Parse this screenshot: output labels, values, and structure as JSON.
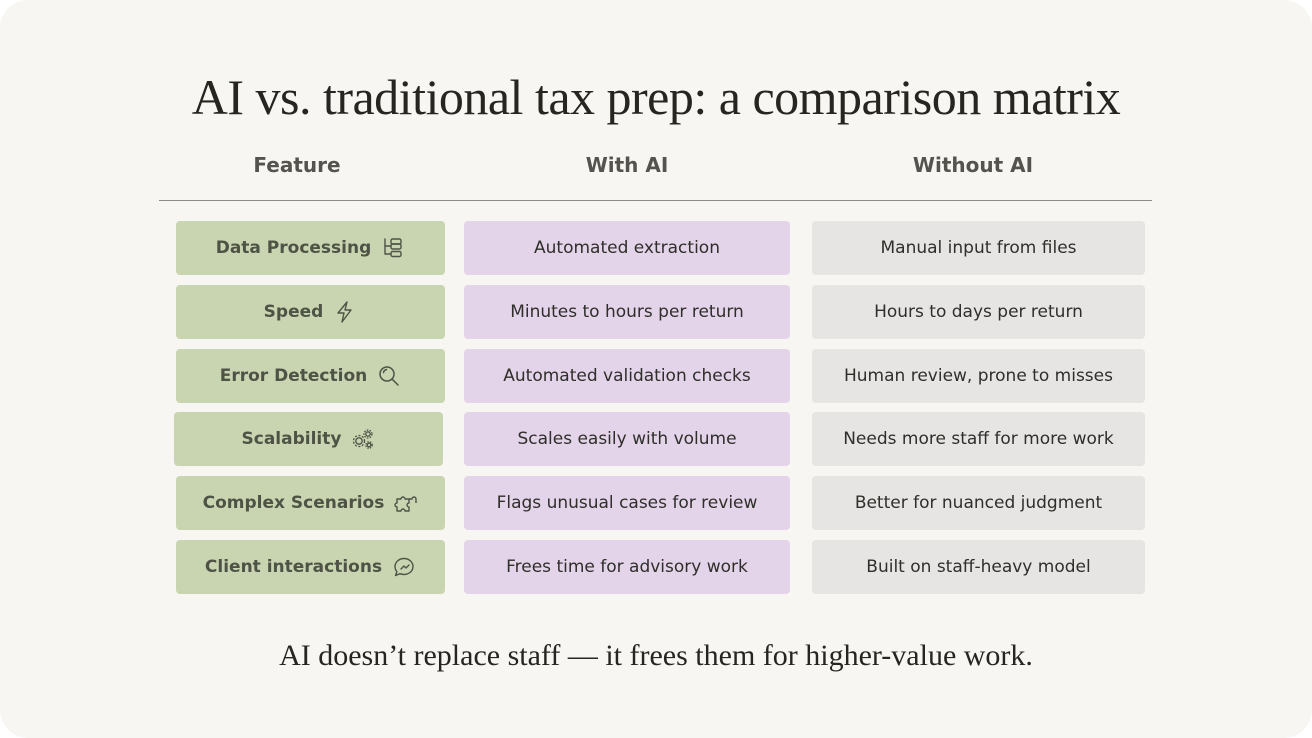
{
  "title": "AI vs. traditional tax prep: a comparison matrix",
  "columns": {
    "feature": "Feature",
    "with_ai": "With AI",
    "without_ai": "Without AI"
  },
  "rows": [
    {
      "feature": "Data Processing",
      "icon": "flowchart-icon",
      "with_ai": "Automated extraction",
      "without_ai": "Manual input from files"
    },
    {
      "feature": "Speed",
      "icon": "lightning-icon",
      "with_ai": "Minutes to hours per return",
      "without_ai": "Hours to days per return"
    },
    {
      "feature": "Error Detection",
      "icon": "magnifier-icon",
      "with_ai": "Automated validation checks",
      "without_ai": "Human review, prone to misses"
    },
    {
      "feature": "Scalability",
      "icon": "gears-icon",
      "with_ai": "Scales easily with volume",
      "without_ai": "Needs more staff for more work"
    },
    {
      "feature": "Complex Scenarios",
      "icon": "puzzle-icon",
      "with_ai": "Flags unusual cases for review",
      "without_ai": "Better for nuanced judgment"
    },
    {
      "feature": "Client interactions",
      "icon": "chat-bubble-icon",
      "with_ai": "Frees time for advisory work",
      "without_ai": "Built on staff-heavy model"
    }
  ],
  "footer": "AI doesn’t replace staff — it frees them for higher-value work.",
  "colors": {
    "background": "#f7f6f3",
    "feature_cell": "#c9d5b0",
    "with_ai_cell": "#e3d4e9",
    "without_ai_cell": "#e6e5e3",
    "text": "#2f2e2a"
  }
}
